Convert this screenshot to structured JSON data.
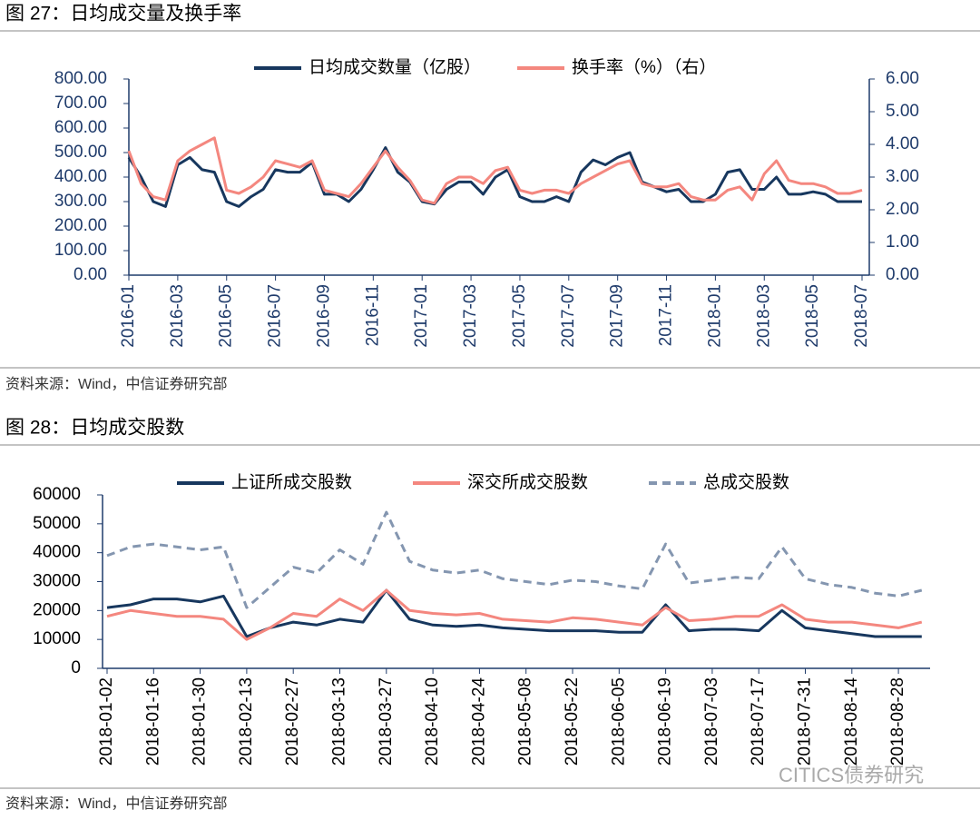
{
  "chart_data": [
    {
      "type": "line",
      "title": "图 27：日均成交量及换手率",
      "source": "资料来源：Wind，中信证券研究部",
      "categories": [
        "2016-01",
        null,
        null,
        null,
        "2016-03",
        null,
        null,
        null,
        "2016-05",
        null,
        null,
        null,
        "2016-07",
        null,
        null,
        null,
        "2016-09",
        null,
        null,
        null,
        "2016-11",
        null,
        null,
        null,
        "2017-01",
        null,
        null,
        null,
        "2017-03",
        null,
        null,
        null,
        "2017-05",
        null,
        null,
        null,
        "2017-07",
        null,
        null,
        null,
        "2017-09",
        null,
        null,
        null,
        "2017-11",
        null,
        null,
        null,
        "2018-01",
        null,
        null,
        null,
        "2018-03",
        null,
        null,
        null,
        "2018-05",
        null,
        null,
        null,
        "2018-07"
      ],
      "series": [
        {
          "name": "日均成交数量（亿股）",
          "color": "#17375e",
          "values": [
            480,
            400,
            300,
            280,
            450,
            480,
            430,
            420,
            300,
            280,
            320,
            350,
            430,
            420,
            420,
            460,
            330,
            330,
            300,
            350,
            430,
            520,
            420,
            380,
            300,
            290,
            350,
            380,
            380,
            330,
            400,
            430,
            320,
            300,
            300,
            320,
            300,
            420,
            470,
            450,
            480,
            500,
            380,
            360,
            340,
            350,
            300,
            300,
            330,
            420,
            430,
            350,
            350,
            400,
            330,
            330,
            340,
            330,
            300,
            300,
            300
          ]
        },
        {
          "name": "换手率（%）（右）",
          "color": "#f4877f",
          "axis": "y2",
          "values": [
            3.8,
            2.8,
            2.4,
            2.3,
            3.5,
            3.8,
            4.0,
            4.2,
            2.6,
            2.5,
            2.7,
            3.0,
            3.5,
            3.4,
            3.3,
            3.5,
            2.6,
            2.5,
            2.4,
            2.8,
            3.3,
            3.8,
            3.3,
            2.9,
            2.3,
            2.2,
            2.8,
            3.0,
            3.0,
            2.8,
            3.2,
            3.3,
            2.6,
            2.5,
            2.6,
            2.6,
            2.5,
            2.8,
            3.0,
            3.2,
            3.4,
            3.5,
            2.8,
            2.7,
            2.7,
            2.8,
            2.4,
            2.3,
            2.3,
            2.6,
            2.7,
            2.3,
            3.1,
            3.5,
            2.9,
            2.8,
            2.8,
            2.7,
            2.5,
            2.5,
            2.6
          ]
        }
      ],
      "ylim": [
        0,
        800
      ],
      "yticks": [
        {
          "value": 0,
          "label": "0.00"
        },
        {
          "value": 100,
          "label": "100.00"
        },
        {
          "value": 200,
          "label": "200.00"
        },
        {
          "value": 300,
          "label": "300.00"
        },
        {
          "value": 400,
          "label": "400.00"
        },
        {
          "value": 500,
          "label": "500.00"
        },
        {
          "value": 600,
          "label": "600.00"
        },
        {
          "value": 700,
          "label": "700.00"
        },
        {
          "value": 800,
          "label": "800.00"
        }
      ],
      "y2lim": [
        0,
        6
      ],
      "y2ticks": [
        {
          "value": 0,
          "label": "0.00"
        },
        {
          "value": 1,
          "label": "1.00"
        },
        {
          "value": 2,
          "label": "2.00"
        },
        {
          "value": 3,
          "label": "3.00"
        },
        {
          "value": 4,
          "label": "4.00"
        },
        {
          "value": 5,
          "label": "5.00"
        },
        {
          "value": 6,
          "label": "6.00"
        }
      ]
    },
    {
      "type": "line",
      "title": "图 28：日均成交股数",
      "source": "资料来源：Wind，中信证券研究部",
      "categories": [
        "2018-01-02",
        null,
        "2018-01-16",
        null,
        "2018-01-30",
        null,
        "2018-02-13",
        null,
        "2018-02-27",
        null,
        "2018-03-13",
        null,
        "2018-03-27",
        null,
        "2018-04-10",
        null,
        "2018-04-24",
        null,
        "2018-05-08",
        null,
        "2018-05-22",
        null,
        "2018-06-05",
        null,
        "2018-06-19",
        null,
        "2018-07-03",
        null,
        "2018-07-17",
        null,
        "2018-07-31",
        null,
        "2018-08-14",
        null,
        "2018-08-28",
        null
      ],
      "series": [
        {
          "name": "上证所成交股数",
          "color": "#17375e",
          "values": [
            21000,
            22000,
            24000,
            24000,
            23000,
            25000,
            11000,
            14000,
            16000,
            15000,
            17000,
            16000,
            27000,
            17000,
            15000,
            14500,
            15000,
            14000,
            13500,
            13000,
            13000,
            13000,
            12500,
            12500,
            22000,
            13000,
            13500,
            13500,
            13000,
            20000,
            14000,
            13000,
            12000,
            11000,
            11000,
            11000
          ]
        },
        {
          "name": "深交所成交股数",
          "color": "#f4877f",
          "values": [
            18000,
            20000,
            19000,
            18000,
            18000,
            17000,
            10000,
            14000,
            19000,
            18000,
            24000,
            20000,
            27000,
            20000,
            19000,
            18500,
            19000,
            17000,
            16500,
            16000,
            17500,
            17000,
            16000,
            15000,
            21000,
            16500,
            17000,
            18000,
            18000,
            22000,
            17000,
            16000,
            16000,
            15000,
            14000,
            16000
          ]
        },
        {
          "name": "总成交股数",
          "color": "#8496b0",
          "dash": true,
          "values": [
            39000,
            42000,
            43000,
            42000,
            41000,
            42000,
            21000,
            28000,
            35000,
            33000,
            41000,
            36000,
            54000,
            37000,
            34000,
            33000,
            34000,
            31000,
            30000,
            29000,
            30500,
            30000,
            28500,
            27500,
            43000,
            29500,
            30500,
            31500,
            31000,
            42000,
            31000,
            29000,
            28000,
            26000,
            25000,
            27000
          ]
        }
      ],
      "ylim": [
        0,
        60000
      ],
      "yticks": [
        0,
        10000,
        20000,
        30000,
        40000,
        50000,
        60000
      ]
    }
  ],
  "watermark": "CITICS债券研究"
}
